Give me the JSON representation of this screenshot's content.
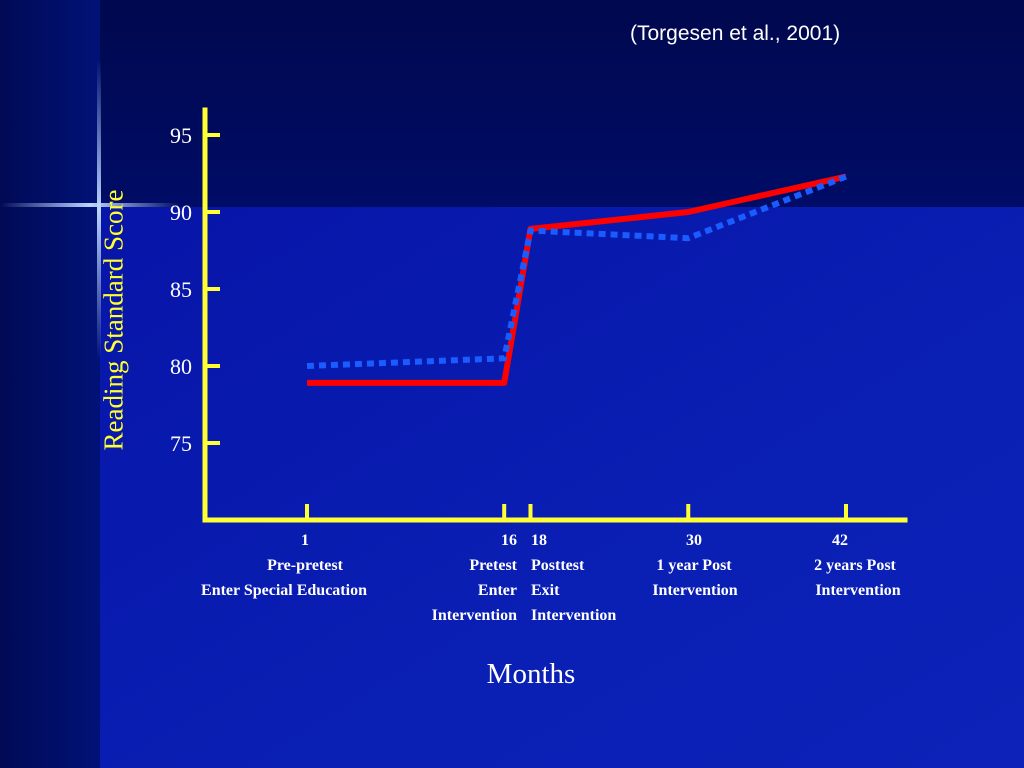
{
  "citation": "(Torgesen et al., 2001)",
  "colors": {
    "background": "#0a1db0",
    "axis": "#ffff33",
    "solid_series": "#ff0000",
    "dotted_series": "#1a5cff"
  },
  "chart_data": {
    "type": "line",
    "title": "",
    "xlabel": "Months",
    "ylabel": "Reading Standard Score",
    "ylim": [
      70,
      97
    ],
    "yticks": [
      75,
      80,
      85,
      90,
      95
    ],
    "grid": false,
    "x": [
      1,
      16,
      18,
      30,
      42
    ],
    "x_labels": [
      [
        "1",
        "Pre-pretest",
        "Enter Special Education"
      ],
      [
        "16",
        "Pretest",
        "Enter",
        "Intervention"
      ],
      [
        "18",
        "Posttest",
        "Exit",
        "Intervention"
      ],
      [
        "30",
        "1 year Post",
        "Intervention"
      ],
      [
        "42",
        "2 years Post",
        "Intervention"
      ]
    ],
    "series": [
      {
        "style": "solid",
        "color": "#ff0000",
        "values": [
          78.9,
          78.9,
          88.9,
          90.0,
          92.3
        ]
      },
      {
        "style": "dotted",
        "color": "#1a5cff",
        "values": [
          80.0,
          80.5,
          88.8,
          88.3,
          92.3
        ]
      }
    ]
  }
}
